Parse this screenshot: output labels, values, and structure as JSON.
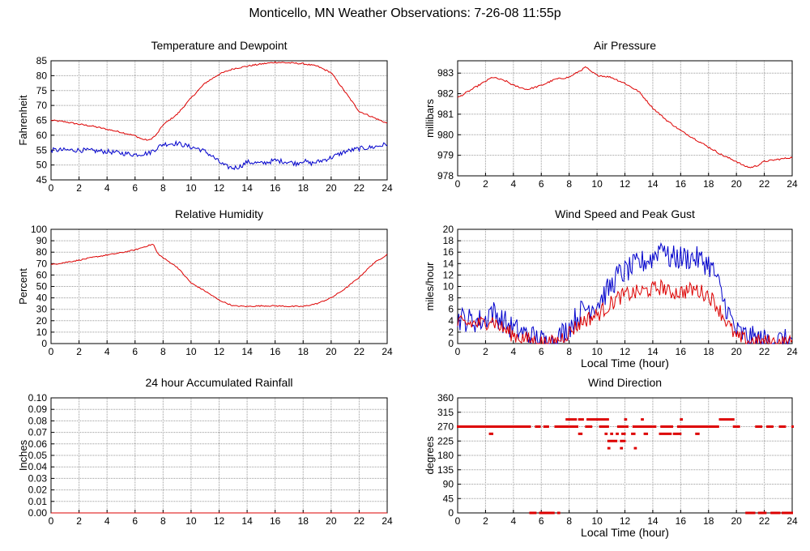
{
  "page_title": "Monticello, MN Weather Observations: 7-26-08 11:55p",
  "colors": {
    "red": "#dd0000",
    "blue": "#0000cc",
    "grid": "#9a9a9a"
  },
  "chart_data": [
    {
      "id": "temp",
      "type": "line",
      "title": "Temperature and Dewpoint",
      "ylabel": "Fahrenheit",
      "xlabel": "",
      "xlim": [
        0,
        24
      ],
      "ylim": [
        45,
        85
      ],
      "xticks": [
        0,
        2,
        4,
        6,
        8,
        10,
        12,
        14,
        16,
        18,
        20,
        22,
        24
      ],
      "yticks": [
        45,
        50,
        55,
        60,
        65,
        70,
        75,
        80,
        85
      ],
      "series": [
        {
          "color": "#dd0000",
          "noise": 0.25,
          "x": [
            0,
            1,
            2,
            3,
            4,
            5,
            6,
            6.5,
            7,
            7.5,
            8,
            9,
            10,
            11,
            12,
            13,
            14,
            15,
            16,
            17,
            18,
            19,
            20,
            21,
            22,
            23,
            24
          ],
          "y": [
            65,
            64.5,
            63.7,
            63,
            62,
            61,
            59.8,
            58.7,
            58.3,
            60,
            63.5,
            67,
            72.5,
            77.5,
            80.5,
            82.3,
            83.2,
            83.9,
            84.5,
            84.3,
            84,
            83.2,
            81,
            74.5,
            68,
            66,
            64
          ]
        },
        {
          "color": "#0000cc",
          "noise": 0.8,
          "x": [
            0,
            2,
            4,
            5,
            6,
            7,
            7.5,
            8,
            9,
            10,
            10.5,
            11,
            11.5,
            12,
            12.5,
            13,
            13.5,
            14,
            15,
            16,
            17,
            17.5,
            18,
            18.5,
            19,
            20,
            21,
            22,
            23,
            24
          ],
          "y": [
            55,
            55,
            54.5,
            54,
            53.5,
            54,
            55.5,
            57,
            57.3,
            56,
            55.5,
            54.5,
            53,
            51,
            49.5,
            49,
            49.5,
            51,
            50.5,
            51.5,
            51,
            50.5,
            51.5,
            50.5,
            51,
            52.5,
            54.5,
            55.5,
            56,
            57
          ]
        }
      ]
    },
    {
      "id": "pressure",
      "type": "line",
      "title": "Air Pressure",
      "ylabel": "millibars",
      "xlabel": "",
      "xlim": [
        0,
        24
      ],
      "ylim": [
        978,
        983.6
      ],
      "xticks": [
        0,
        2,
        4,
        6,
        8,
        10,
        12,
        14,
        16,
        18,
        20,
        22,
        24
      ],
      "yticks": [
        978,
        979,
        980,
        981,
        982,
        983
      ],
      "series": [
        {
          "color": "#dd0000",
          "noise": 0.04,
          "x": [
            0,
            1,
            2,
            2.5,
            3,
            3.5,
            4,
            5,
            6,
            7,
            8,
            8.5,
            9,
            9.2,
            9.5,
            10,
            11,
            12,
            13,
            14,
            15,
            16,
            17,
            18,
            19,
            20,
            20.5,
            21,
            21.5,
            22,
            23,
            24
          ],
          "y": [
            981.8,
            982.2,
            982.6,
            982.8,
            982.7,
            982.6,
            982.4,
            982.2,
            982.4,
            982.7,
            982.8,
            983,
            983.2,
            983.3,
            983.1,
            982.9,
            982.8,
            982.5,
            982.1,
            981.3,
            980.7,
            980.2,
            979.8,
            979.4,
            979,
            978.7,
            978.5,
            978.4,
            978.5,
            978.7,
            978.8,
            978.9
          ]
        }
      ]
    },
    {
      "id": "humidity",
      "type": "line",
      "title": "Relative Humidity",
      "ylabel": "Percent",
      "xlabel": "",
      "xlim": [
        0,
        24
      ],
      "ylim": [
        0,
        100
      ],
      "xticks": [
        0,
        2,
        4,
        6,
        8,
        10,
        12,
        14,
        16,
        18,
        20,
        22,
        24
      ],
      "yticks": [
        0,
        10,
        20,
        30,
        40,
        50,
        60,
        70,
        80,
        90,
        100
      ],
      "series": [
        {
          "color": "#dd0000",
          "noise": 0.5,
          "x": [
            0,
            1,
            2,
            3,
            4,
            5,
            6,
            7,
            7.3,
            7.6,
            8,
            9,
            10,
            11,
            12,
            13,
            14,
            15,
            16,
            17,
            18,
            19,
            20,
            21,
            22,
            23,
            24
          ],
          "y": [
            69,
            71,
            73,
            75.5,
            77.5,
            79.5,
            82,
            86,
            87,
            79,
            75,
            67,
            53,
            46,
            38,
            33,
            32.5,
            33,
            33,
            32.5,
            32.5,
            35,
            40,
            48,
            58,
            70,
            78
          ]
        }
      ]
    },
    {
      "id": "wind",
      "type": "line",
      "title": "Wind Speed and Peak Gust",
      "ylabel": "miles/hour",
      "xlabel": "Local Time (hour)",
      "xlim": [
        0,
        24
      ],
      "ylim": [
        0,
        20
      ],
      "xticks": [
        0,
        2,
        4,
        6,
        8,
        10,
        12,
        14,
        16,
        18,
        20,
        22,
        24
      ],
      "yticks": [
        0,
        2,
        4,
        6,
        8,
        10,
        12,
        14,
        16,
        18,
        20
      ],
      "series": [
        {
          "color": "#0000cc",
          "noise": 2.2,
          "x": [
            0,
            1,
            2,
            2.3,
            3,
            4,
            5,
            6,
            6.5,
            7,
            8,
            9,
            10,
            11,
            11.5,
            12,
            13,
            14,
            14.8,
            15,
            16,
            17,
            18,
            18.5,
            19,
            19.5,
            20,
            21,
            22,
            23,
            24
          ],
          "y": [
            4.5,
            4,
            4,
            6,
            4.5,
            2.5,
            1.5,
            0.5,
            0,
            0.5,
            3,
            6,
            7,
            10,
            12,
            12.5,
            14,
            15,
            18,
            15,
            15,
            15,
            14,
            12,
            8,
            5,
            2,
            1,
            0.5,
            0.5,
            0.3
          ]
        },
        {
          "color": "#dd0000",
          "noise": 1.4,
          "x": [
            0,
            1,
            2,
            2.3,
            3,
            4,
            5,
            6,
            6.5,
            7,
            8,
            9,
            10,
            11,
            11.5,
            12,
            13,
            14,
            14.8,
            15,
            16,
            17,
            18,
            18.5,
            19,
            19.5,
            20,
            21,
            22,
            23,
            24
          ],
          "y": [
            3.5,
            3.5,
            3.5,
            4.5,
            3,
            1.5,
            0.7,
            0.2,
            0,
            0.2,
            2,
            4,
            5,
            7,
            8,
            8.5,
            9,
            9.5,
            10,
            9,
            9,
            9.5,
            8.5,
            7,
            5,
            3,
            1,
            0.4,
            0.2,
            0.2,
            0.1
          ]
        }
      ]
    },
    {
      "id": "rain",
      "type": "line",
      "title": "24 hour Accumulated Rainfall",
      "ylabel": "Inches",
      "xlabel": "",
      "xlim": [
        0,
        24
      ],
      "ylim": [
        0,
        0.1
      ],
      "xticks": [
        0,
        2,
        4,
        6,
        8,
        10,
        12,
        14,
        16,
        18,
        20,
        22,
        24
      ],
      "yticks": [
        0,
        0.01,
        0.02,
        0.03,
        0.04,
        0.05,
        0.06,
        0.07,
        0.08,
        0.09,
        0.1
      ],
      "ytick_labels": [
        "0.00",
        "0.01",
        "0.02",
        "0.03",
        "0.04",
        "0.05",
        "0.06",
        "0.07",
        "0.08",
        "0.09",
        "0.10"
      ],
      "series": [
        {
          "color": "#dd0000",
          "noise": 0,
          "x": [
            0,
            24
          ],
          "y": [
            0,
            0
          ]
        }
      ]
    },
    {
      "id": "direction",
      "type": "scatter",
      "title": "Wind Direction",
      "ylabel": "degrees",
      "xlabel": "Local Time (hour)",
      "xlim": [
        0,
        24
      ],
      "ylim": [
        0,
        360
      ],
      "xticks": [
        0,
        2,
        4,
        6,
        8,
        10,
        12,
        14,
        16,
        18,
        20,
        22,
        24
      ],
      "yticks": [
        0,
        45,
        90,
        135,
        180,
        225,
        270,
        315,
        360
      ],
      "segments": [
        {
          "y": 270,
          "ranges": [
            [
              0,
              5.2
            ],
            [
              5.6,
              5.9
            ],
            [
              6.2,
              6.5
            ],
            [
              7,
              8.6
            ],
            [
              9.2,
              9.6
            ],
            [
              10.2,
              10.8
            ],
            [
              11.5,
              12.2
            ],
            [
              12.6,
              14.2
            ],
            [
              14.6,
              15.4
            ],
            [
              15.8,
              18.7
            ],
            [
              19.8,
              20.2
            ],
            [
              21.4,
              21.8
            ],
            [
              22.2,
              22.6
            ],
            [
              23.1,
              23.5
            ],
            [
              24,
              24
            ]
          ]
        },
        {
          "y": 292.5,
          "ranges": [
            [
              7.8,
              8.5
            ],
            [
              8.7,
              9
            ],
            [
              9.3,
              10.8
            ],
            [
              12,
              12.1
            ],
            [
              13.2,
              13.3
            ],
            [
              16,
              16.1
            ],
            [
              18.8,
              19.8
            ]
          ]
        },
        {
          "y": 247.5,
          "ranges": [
            [
              2.3,
              2.5
            ],
            [
              8.7,
              8.9
            ],
            [
              10.6,
              10.7
            ],
            [
              11,
              11.1
            ],
            [
              11.4,
              11.5
            ],
            [
              11.8,
              12
            ],
            [
              12.5,
              12.7
            ],
            [
              13.4,
              13.6
            ],
            [
              14.5,
              15.3
            ],
            [
              15.5,
              16
            ],
            [
              17.1,
              17.3
            ]
          ]
        },
        {
          "y": 225,
          "ranges": [
            [
              10.8,
              11.4
            ],
            [
              11.7,
              12
            ]
          ]
        },
        {
          "y": 202.5,
          "ranges": [
            [
              10.8,
              10.9
            ],
            [
              11.7,
              11.8
            ],
            [
              12.7,
              12.8
            ]
          ]
        },
        {
          "y": 0,
          "ranges": [
            [
              5.2,
              5.6
            ],
            [
              5.9,
              6.9
            ],
            [
              7.2,
              7.3
            ],
            [
              20.7,
              21.3
            ],
            [
              21.6,
              22.1
            ],
            [
              22.5,
              23.1
            ],
            [
              23.3,
              24
            ]
          ]
        }
      ]
    }
  ]
}
